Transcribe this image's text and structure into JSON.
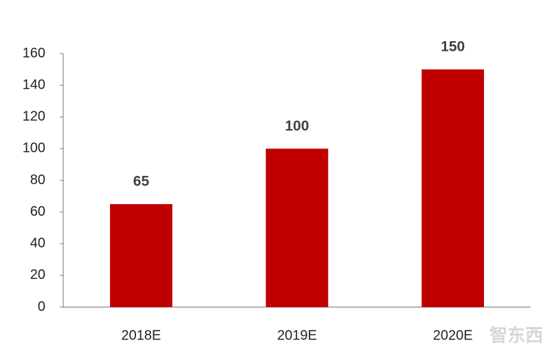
{
  "chart_data": {
    "type": "bar",
    "categories": [
      "2018E",
      "2019E",
      "2020E"
    ],
    "values": [
      65,
      100,
      150
    ],
    "color": "#c00000",
    "ylim": [
      0,
      160
    ],
    "yticks": [
      0,
      20,
      40,
      60,
      80,
      100,
      120,
      140,
      160
    ],
    "grid": false,
    "watermark": "智东西"
  }
}
